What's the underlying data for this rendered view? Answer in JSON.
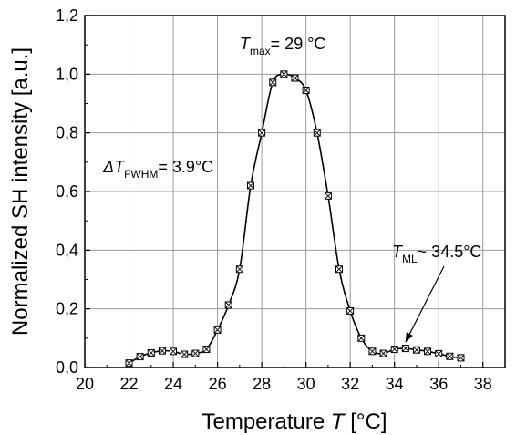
{
  "chart_data": {
    "type": "line",
    "xlabel": {
      "prefix": "Temperature ",
      "var": "T",
      "unit": " [°C]"
    },
    "ylabel": "Normalized SH intensity [a.u.]",
    "xlim": [
      20,
      39
    ],
    "ylim": [
      0,
      1.2
    ],
    "x_ticks": [
      "20",
      "22",
      "24",
      "26",
      "28",
      "30",
      "32",
      "34",
      "36",
      "38"
    ],
    "y_ticks": [
      "0,0",
      "0,2",
      "0,4",
      "0,6",
      "0,8",
      "1,0",
      "1,2"
    ],
    "grid": true,
    "line_color": "#000000",
    "series": [
      {
        "x": [
          22,
          22.5,
          23,
          23.5,
          24,
          24.5,
          25,
          25.5,
          26,
          26.5,
          27,
          27.5,
          28,
          28.5,
          29,
          29.5,
          30,
          30.5,
          31,
          31.5,
          32,
          32.5,
          33,
          33.5,
          34,
          34.5,
          35,
          35.5,
          36,
          36.5,
          37
        ],
        "y": [
          0.015,
          0.037,
          0.05,
          0.057,
          0.055,
          0.045,
          0.048,
          0.062,
          0.128,
          0.213,
          0.335,
          0.62,
          0.8,
          0.972,
          1.0,
          0.987,
          0.945,
          0.8,
          0.585,
          0.335,
          0.193,
          0.1,
          0.055,
          0.048,
          0.062,
          0.065,
          0.06,
          0.055,
          0.047,
          0.038,
          0.033
        ]
      }
    ],
    "annotations": {
      "tmax": {
        "var": "T",
        "sub": "max",
        "text": "= 29 °C"
      },
      "fwhm": {
        "prefix": "Δ",
        "var": "T",
        "sub": "FWHM",
        "text": "= 3.9°C"
      },
      "tml": {
        "var": "T",
        "sub": "ML",
        "text": "~ 34.5°C",
        "arrow_to": [
          34.5,
          0.065
        ]
      }
    }
  }
}
